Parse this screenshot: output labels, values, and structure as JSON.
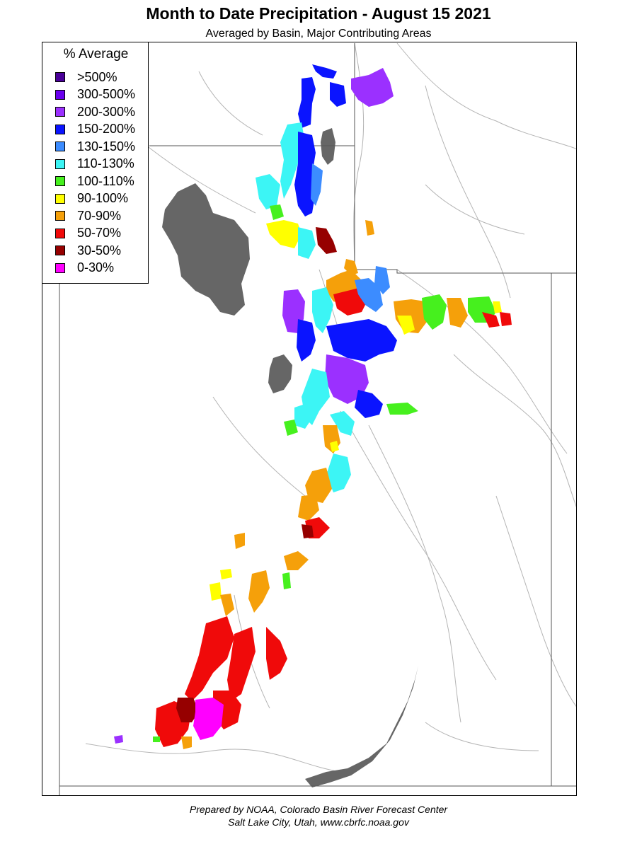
{
  "title": "Month to Date Precipitation - August 15 2021",
  "subtitle": "Averaged by Basin, Major Contributing Areas",
  "legend": {
    "title": "% Average",
    "items": [
      {
        "label": ">500%",
        "color": "#4a0099"
      },
      {
        "label": "300-500%",
        "color": "#6a00ee"
      },
      {
        "label": "200-300%",
        "color": "#9b30ff"
      },
      {
        "label": "150-200%",
        "color": "#0a14ff"
      },
      {
        "label": "130-150%",
        "color": "#3c8cff"
      },
      {
        "label": "110-130%",
        "color": "#3cf5f5"
      },
      {
        "label": "100-110%",
        "color": "#46f01e"
      },
      {
        "label": "90-100%",
        "color": "#ffff00"
      },
      {
        "label": "70-90%",
        "color": "#f5a00a"
      },
      {
        "label": "50-70%",
        "color": "#f00a0a"
      },
      {
        "label": "30-50%",
        "color": "#960000"
      },
      {
        "label": "0-30%",
        "color": "#ff00ff"
      }
    ]
  },
  "map": {
    "lake_color": "#666666",
    "boundary_color": "#555555",
    "river_color": "#b4b4b4"
  },
  "footer": {
    "line1": "Prepared by NOAA, Colorado Basin River Forecast Center",
    "line2": "Salt Lake City, Utah, www.cbrfc.noaa.gov"
  }
}
